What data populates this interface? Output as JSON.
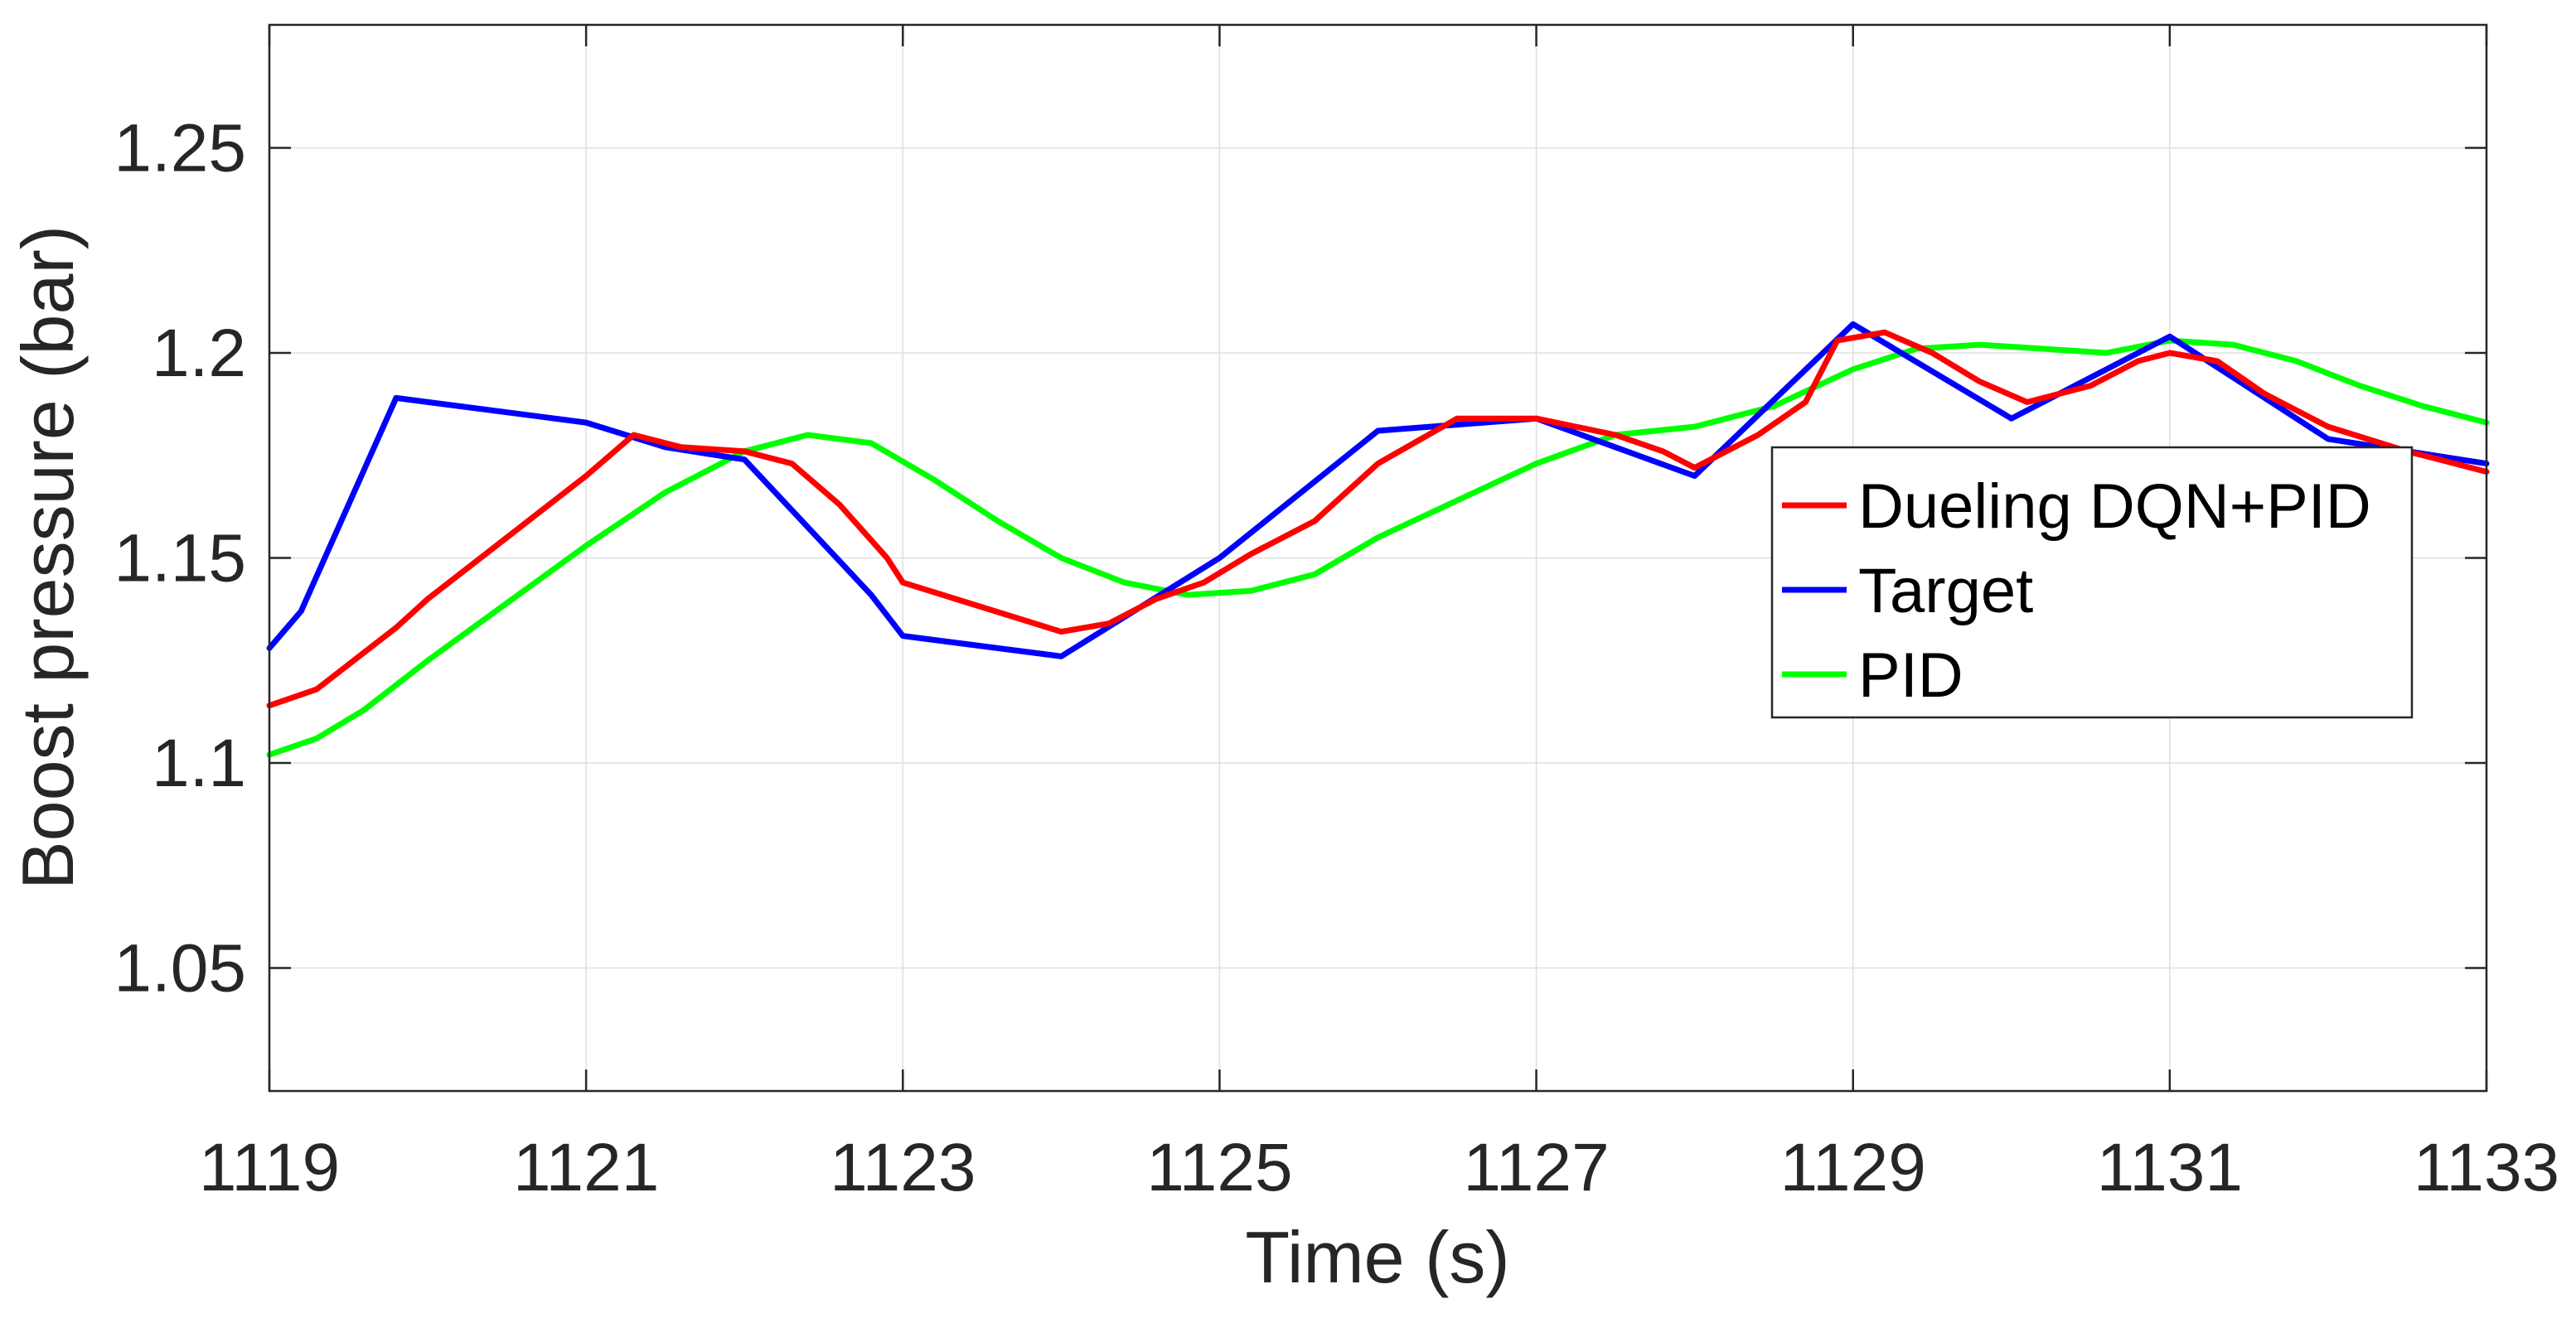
{
  "chart_data": {
    "type": "line",
    "xlabel": "Time (s)",
    "ylabel": "Boost pressure (bar)",
    "xlim": [
      1119,
      1133
    ],
    "ylim": [
      1.02,
      1.28
    ],
    "xticks": [
      1119,
      1121,
      1123,
      1125,
      1127,
      1129,
      1131,
      1133
    ],
    "xtick_labels": [
      "1119",
      "1121",
      "1123",
      "1125",
      "1127",
      "1129",
      "1131",
      "1133"
    ],
    "yticks": [
      1.05,
      1.1,
      1.15,
      1.2,
      1.25
    ],
    "ytick_labels": [
      "1.05",
      "1.1",
      "1.15",
      "1.2",
      "1.25"
    ],
    "grid": true,
    "legend_position": "right",
    "series": [
      {
        "name": "Dueling DQN+PID",
        "color": "#ff0000",
        "x": [
          1119,
          1119.3,
          1119.6,
          1119.8,
          1120,
          1120.5,
          1121,
          1121.3,
          1121.6,
          1122,
          1122.3,
          1122.6,
          1122.9,
          1123,
          1123.5,
          1124,
          1124.3,
          1124.6,
          1124.9,
          1125.2,
          1125.6,
          1126,
          1126.5,
          1127,
          1127.5,
          1127.8,
          1128,
          1128.4,
          1128.7,
          1128.9,
          1129.2,
          1129.5,
          1129.8,
          1130.1,
          1130.5,
          1130.8,
          1131,
          1131.3,
          1131.6,
          1132,
          1132.5,
          1133
        ],
        "y": [
          1.114,
          1.118,
          1.127,
          1.133,
          1.14,
          1.155,
          1.17,
          1.18,
          1.177,
          1.176,
          1.173,
          1.163,
          1.15,
          1.144,
          1.138,
          1.132,
          1.134,
          1.14,
          1.144,
          1.151,
          1.159,
          1.173,
          1.184,
          1.184,
          1.18,
          1.176,
          1.172,
          1.18,
          1.188,
          1.203,
          1.205,
          1.2,
          1.193,
          1.188,
          1.192,
          1.198,
          1.2,
          1.198,
          1.19,
          1.182,
          1.176,
          1.171
        ]
      },
      {
        "name": "Target",
        "color": "#0000ff",
        "x": [
          1119,
          1119.2,
          1119.8,
          1121,
          1121.5,
          1122,
          1122.8,
          1123,
          1124,
          1125,
          1126,
          1127,
          1128,
          1129,
          1130,
          1131,
          1132,
          1133
        ],
        "y": [
          1.128,
          1.137,
          1.189,
          1.183,
          1.177,
          1.174,
          1.141,
          1.131,
          1.126,
          1.15,
          1.181,
          1.184,
          1.17,
          1.207,
          1.184,
          1.204,
          1.179,
          1.173
        ]
      },
      {
        "name": "PID",
        "color": "#00ff00",
        "x": [
          1119,
          1119.3,
          1119.6,
          1120,
          1120.5,
          1121,
          1121.5,
          1122,
          1122.4,
          1122.8,
          1123.2,
          1123.6,
          1124,
          1124.4,
          1124.8,
          1125.2,
          1125.6,
          1126,
          1126.5,
          1127,
          1127.5,
          1128,
          1128.5,
          1129,
          1129.4,
          1129.8,
          1130.2,
          1130.6,
          1131,
          1131.4,
          1131.8,
          1132.2,
          1132.6,
          1133
        ],
        "y": [
          1.102,
          1.106,
          1.113,
          1.125,
          1.139,
          1.153,
          1.166,
          1.176,
          1.18,
          1.178,
          1.169,
          1.159,
          1.15,
          1.144,
          1.141,
          1.142,
          1.146,
          1.155,
          1.164,
          1.173,
          1.18,
          1.182,
          1.187,
          1.196,
          1.201,
          1.202,
          1.201,
          1.2,
          1.203,
          1.202,
          1.198,
          1.192,
          1.187,
          1.183
        ]
      }
    ]
  }
}
